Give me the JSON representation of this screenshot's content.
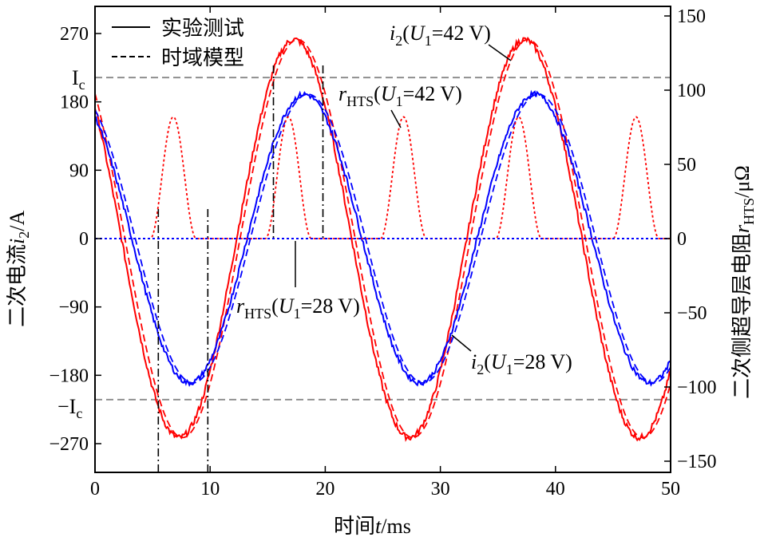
{
  "chart_data": {
    "type": "line",
    "xlabel": "时间t/ms",
    "ylabel_left": "二次电流i2/A",
    "ylabel_right": "二次侧超导层电阻rHTS/μΩ",
    "xlim": [
      0,
      50
    ],
    "ylim_left": [
      -300,
      300
    ],
    "ylim_right": [
      -160,
      160
    ],
    "x_ticks": [
      "0",
      "10",
      "20",
      "30",
      "40",
      "50"
    ],
    "y_ticks_left": [
      "270",
      "180",
      "90",
      "0",
      "-90",
      "-180",
      "-270"
    ],
    "y_ticks_right": [
      "150",
      "100",
      "50",
      "0",
      "-50",
      "-100",
      "-150"
    ],
    "critical_current": {
      "label": "Ic",
      "neg_label": "-Ic",
      "value": 212
    },
    "legend": [
      {
        "label": "实验测试",
        "style": "solid"
      },
      {
        "label": "时域模型",
        "style": "dashed"
      }
    ],
    "annotations": [
      {
        "text": "i2(U1=42 V)",
        "main": "i",
        "sub": "2",
        "rest": "(U",
        "sub2": "1",
        "tail": "=42 V)"
      },
      {
        "text": "rHTS(U1=42 V)",
        "main": "r",
        "sub": "HTS",
        "rest": "(U",
        "sub2": "1",
        "tail": "=42 V)"
      },
      {
        "text": "rHTS(U1=28 V)",
        "main": "r",
        "sub": "HTS",
        "rest": "(U",
        "sub2": "1",
        "tail": "=28 V)"
      },
      {
        "text": "i2(U1=28 V)",
        "main": "i",
        "sub": "2",
        "rest": "(U",
        "sub2": "1",
        "tail": "=28 V)"
      }
    ],
    "vertical_markers_ms": [
      5.5,
      9.8,
      15.5,
      19.8
    ],
    "series": [
      {
        "name": "i2(U1=42 V)",
        "axis": "left",
        "color": "#ff0000",
        "amplitude": 262,
        "period_ms": 20,
        "peak_ms": 17.3,
        "offset": 0
      },
      {
        "name": "i2(U1=28 V)",
        "axis": "left",
        "color": "#0000ff",
        "amplitude": 190,
        "period_ms": 20,
        "peak_ms": 18.2,
        "offset": 0
      },
      {
        "name": "rHTS(U1=42 V)",
        "axis": "right",
        "color": "#ff0000",
        "peak_value": 82,
        "peak_times_ms": [
          6.8,
          16.8,
          26.8,
          36.8,
          47.0
        ],
        "half_width_ms": 2.0
      },
      {
        "name": "rHTS(U1=28 V)",
        "axis": "right",
        "color": "#0000ff",
        "value": 0
      }
    ],
    "colors": {
      "red": "#ff0000",
      "blue": "#0000ff",
      "grid_dash": "#888888"
    }
  }
}
